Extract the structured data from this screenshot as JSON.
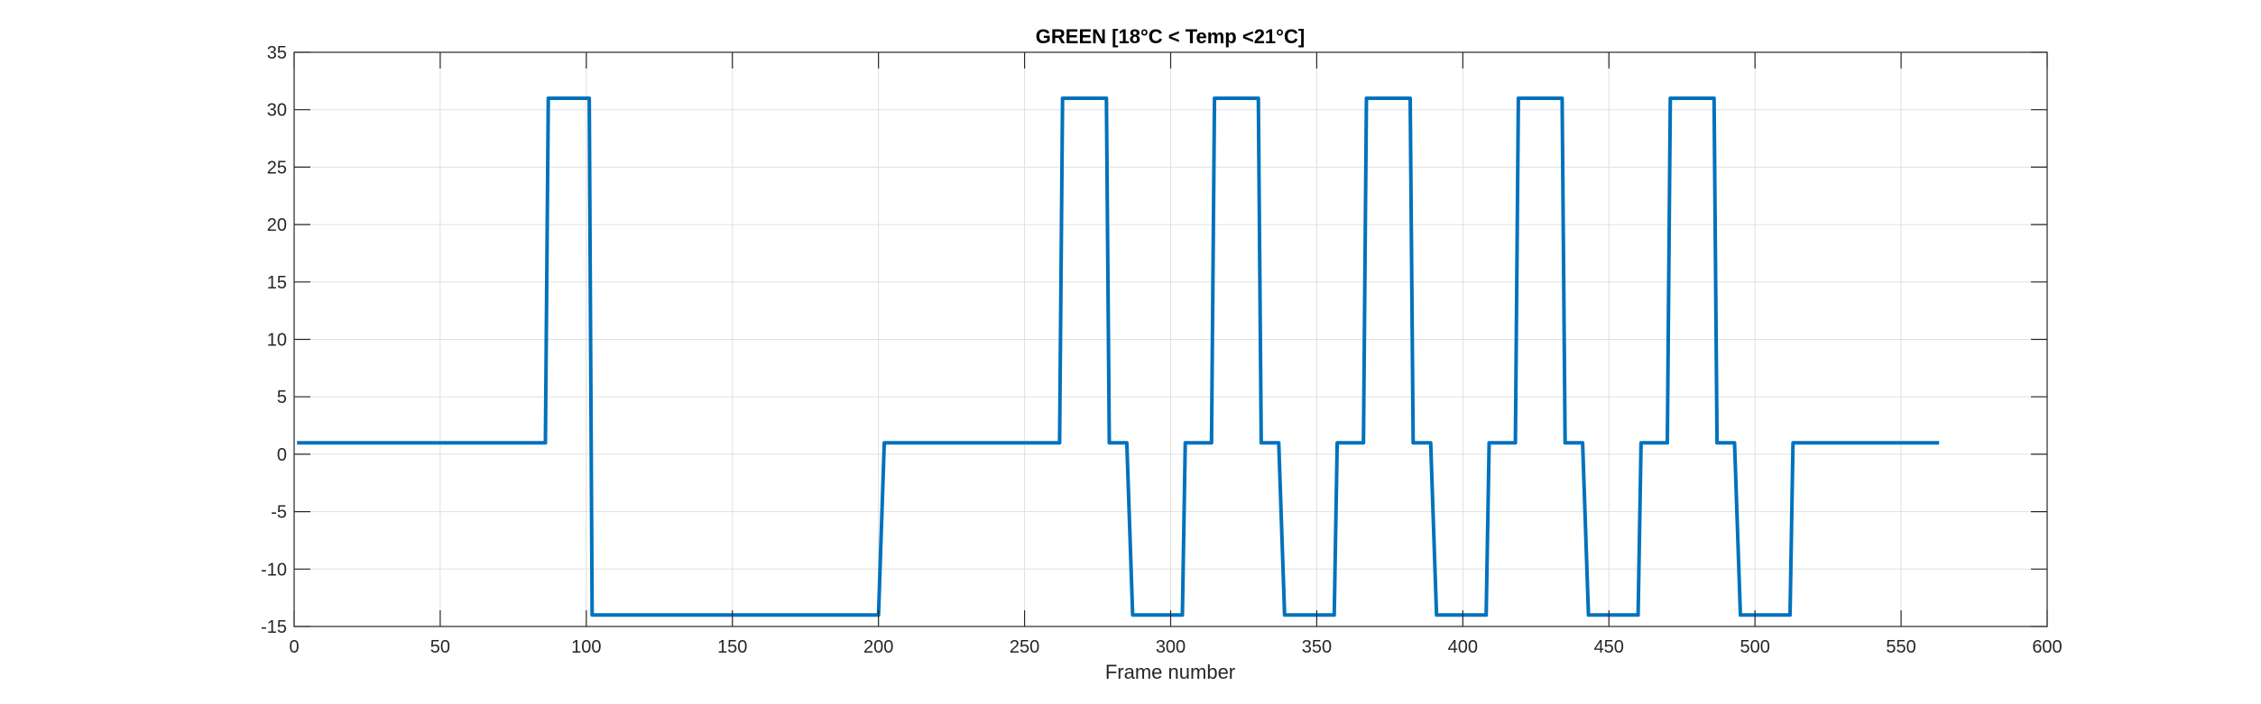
{
  "chart_data": {
    "type": "line",
    "title": "GREEN [18°C < Temp <21°C]",
    "xlabel": "Frame number",
    "ylabel": "",
    "xlim": [
      0,
      600
    ],
    "ylim": [
      -15,
      35
    ],
    "xticks": [
      0,
      50,
      100,
      150,
      200,
      250,
      300,
      350,
      400,
      450,
      500,
      550,
      600
    ],
    "yticks": [
      -15,
      -10,
      -5,
      0,
      5,
      10,
      15,
      20,
      25,
      30,
      35
    ],
    "grid": true,
    "box": true,
    "line_color": "#0072BD",
    "series": [
      {
        "x": [
          1,
          86,
          87,
          101,
          102,
          200,
          202,
          262,
          263,
          278,
          279,
          285,
          287,
          304,
          305,
          314,
          315,
          330,
          331,
          337,
          339,
          356,
          357,
          366,
          367,
          382,
          383,
          389,
          391,
          408,
          409,
          418,
          419,
          434,
          435,
          441,
          443,
          460,
          461,
          470,
          471,
          486,
          487,
          493,
          495,
          512,
          513,
          563
        ],
        "y": [
          1,
          1,
          31,
          31,
          -14,
          -14,
          1,
          1,
          31,
          31,
          1,
          1,
          -14,
          -14,
          1,
          1,
          31,
          31,
          1,
          1,
          -14,
          -14,
          1,
          1,
          31,
          31,
          1,
          1,
          -14,
          -14,
          1,
          1,
          31,
          31,
          1,
          1,
          -14,
          -14,
          1,
          1,
          31,
          31,
          1,
          1,
          -14,
          -14,
          1,
          1
        ]
      }
    ]
  }
}
